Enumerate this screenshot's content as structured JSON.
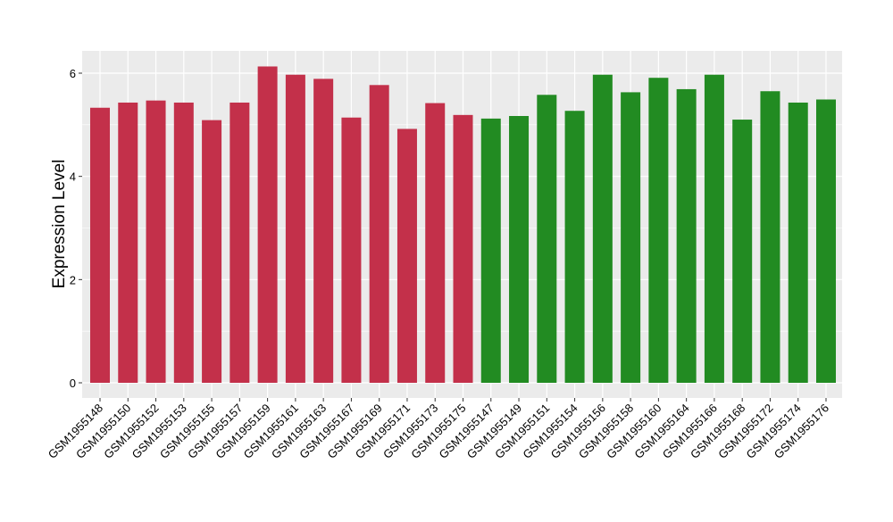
{
  "chart_data": {
    "type": "bar",
    "title": "",
    "xlabel": "",
    "ylabel": "Expression Level",
    "ylim": [
      0,
      6.4
    ],
    "yticks": [
      0,
      2,
      4,
      6
    ],
    "grid": true,
    "legend": "none",
    "colors": {
      "red": "#C3304A",
      "green": "#228B22",
      "panel": "#EBEBEB",
      "grid": "#FFFFFF",
      "axis_text": "#000000"
    },
    "bars": [
      {
        "category": "GSM1955148",
        "value": 5.33,
        "color": "#C3304A"
      },
      {
        "category": "GSM1955150",
        "value": 5.43,
        "color": "#C3304A"
      },
      {
        "category": "GSM1955152",
        "value": 5.47,
        "color": "#C3304A"
      },
      {
        "category": "GSM1955153",
        "value": 5.43,
        "color": "#C3304A"
      },
      {
        "category": "GSM1955155",
        "value": 5.09,
        "color": "#C3304A"
      },
      {
        "category": "GSM1955157",
        "value": 5.43,
        "color": "#C3304A"
      },
      {
        "category": "GSM1955159",
        "value": 6.13,
        "color": "#C3304A"
      },
      {
        "category": "GSM1955161",
        "value": 5.97,
        "color": "#C3304A"
      },
      {
        "category": "GSM1955163",
        "value": 5.89,
        "color": "#C3304A"
      },
      {
        "category": "GSM1955167",
        "value": 5.14,
        "color": "#C3304A"
      },
      {
        "category": "GSM1955169",
        "value": 5.77,
        "color": "#C3304A"
      },
      {
        "category": "GSM1955171",
        "value": 4.92,
        "color": "#C3304A"
      },
      {
        "category": "GSM1955173",
        "value": 5.42,
        "color": "#C3304A"
      },
      {
        "category": "GSM1955175",
        "value": 5.19,
        "color": "#C3304A"
      },
      {
        "category": "GSM1955147",
        "value": 5.12,
        "color": "#228B22"
      },
      {
        "category": "GSM1955149",
        "value": 5.17,
        "color": "#228B22"
      },
      {
        "category": "GSM1955151",
        "value": 5.58,
        "color": "#228B22"
      },
      {
        "category": "GSM1955154",
        "value": 5.27,
        "color": "#228B22"
      },
      {
        "category": "GSM1955156",
        "value": 5.97,
        "color": "#228B22"
      },
      {
        "category": "GSM1955158",
        "value": 5.63,
        "color": "#228B22"
      },
      {
        "category": "GSM1955160",
        "value": 5.91,
        "color": "#228B22"
      },
      {
        "category": "GSM1955164",
        "value": 5.69,
        "color": "#228B22"
      },
      {
        "category": "GSM1955166",
        "value": 5.97,
        "color": "#228B22"
      },
      {
        "category": "GSM1955168",
        "value": 5.1,
        "color": "#228B22"
      },
      {
        "category": "GSM1955172",
        "value": 5.65,
        "color": "#228B22"
      },
      {
        "category": "GSM1955174",
        "value": 5.43,
        "color": "#228B22"
      },
      {
        "category": "GSM1955176",
        "value": 5.49,
        "color": "#228B22"
      }
    ]
  }
}
